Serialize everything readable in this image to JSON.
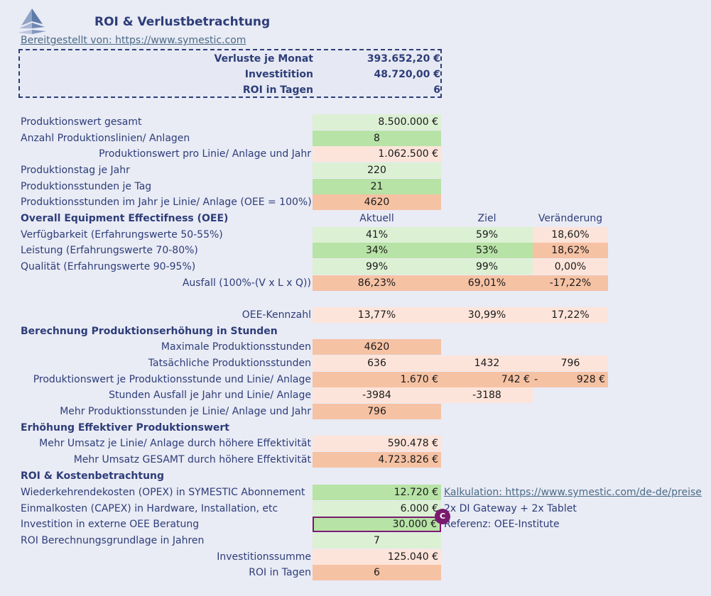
{
  "header": {
    "title": "ROI & Verlustbetrachtung",
    "provider_link": "Bereitgestellt von: https://www.symestic.com"
  },
  "summary": {
    "losses_label": "Verluste je Monat",
    "losses_value": "393.652,20 €",
    "investment_label": "Investitition",
    "investment_value": "48.720,00 €",
    "roi_label": "ROI in Tagen",
    "roi_value": "6"
  },
  "production": {
    "total_value_label": "Produktionswert gesamt",
    "total_value": "8.500.000 €",
    "lines_label": "Anzahl Produktionslinien/ Anlagen",
    "lines": "8",
    "per_line_label": "Produktionswert pro Linie/ Anlage und Jahr",
    "per_line": "1.062.500 €",
    "days_label": "Produktionstag je Jahr",
    "days": "220",
    "hours_label": "Produktionsstunden je Tag",
    "hours": "21",
    "hours_year_label": "Produktionsstunden im Jahr je Linie/ Anlage (OEE = 100%)",
    "hours_year": "4620"
  },
  "oee": {
    "section_label": "Overall Equipment Effectifness (OEE)",
    "col_current": "Aktuell",
    "col_target": "Ziel",
    "col_change": "Veränderung",
    "rows": [
      {
        "label": "Verfügbarkeit (Erfahrungswerte 50-55%)",
        "current": "41%",
        "target": "59%",
        "change": "18,60%"
      },
      {
        "label": "Leistung (Erfahrungswerte 70-80%)",
        "current": "34%",
        "target": "53%",
        "change": "18,62%"
      },
      {
        "label": "Qualität (Erfahrungswerte 90-95%)",
        "current": "99%",
        "target": "99%",
        "change": "0,00%"
      },
      {
        "label": "Ausfall (100%-(V x L x Q))",
        "current": "86,23%",
        "target": "69,01%",
        "change": "-17,22%"
      }
    ],
    "kpi_label": "OEE-Kennzahl",
    "kpi_current": "13,77%",
    "kpi_target": "30,99%",
    "kpi_change": "17,22%"
  },
  "hours_calc": {
    "section_label": "Berechnung Produktionserhöhung in Stunden",
    "max_label": "Maximale Produktionsstunden",
    "max": "4620",
    "actual_label": "Tatsächliche Produktionsstunden",
    "actual_current": "636",
    "actual_target": "1432",
    "actual_change": "796",
    "value_per_hour_label": "Produktionswert je Produktionsstunde und Linie/ Anlage",
    "value_per_hour_current": "1.670 €",
    "value_per_hour_target": "742 €",
    "value_per_hour_change_sign": "-",
    "value_per_hour_change": "928 €",
    "loss_hours_label": "Stunden Ausfall je Jahr und Linie/ Anlage",
    "loss_hours_current": "-3984",
    "loss_hours_target": "-3188",
    "more_hours_label": "Mehr Produktionsstunden je Linie/ Anlage und Jahr",
    "more_hours": "796"
  },
  "effective": {
    "section_label": "Erhöhung Effektiver Produktionswert",
    "per_line_label": "Mehr Umsatz je Linie/ Anlage durch höhere Effektivität",
    "per_line": "590.478 €",
    "total_label": "Mehr Umsatz GESAMT durch höhere Effektivität",
    "total": "4.723.826 €"
  },
  "roi": {
    "section_label": "ROI & Kostenbetrachtung",
    "opex_label": "Wiederkehrendekosten (OPEX) in SYMESTIC Abonnement",
    "opex": "12.720 €",
    "opex_note": "Kalkulation: https://www.symestic.com/de-de/preise",
    "capex_label": "Einmalkosten (CAPEX) in Hardware, Installation, etc",
    "capex": "6.000 €",
    "capex_note": "2x DI Gateway + 2x Tablet",
    "consulting_label": "Investition in externe OEE Beratung",
    "consulting": "30.000 €",
    "consulting_note": "Referenz: OEE-Institute",
    "years_label": "ROI Berechnungsgrundlage in Jahren",
    "years": "7",
    "sum_label": "Investitionssumme",
    "sum": "125.040 €",
    "days_label": "ROI in Tagen",
    "days": "6",
    "badge_letter": "C"
  }
}
